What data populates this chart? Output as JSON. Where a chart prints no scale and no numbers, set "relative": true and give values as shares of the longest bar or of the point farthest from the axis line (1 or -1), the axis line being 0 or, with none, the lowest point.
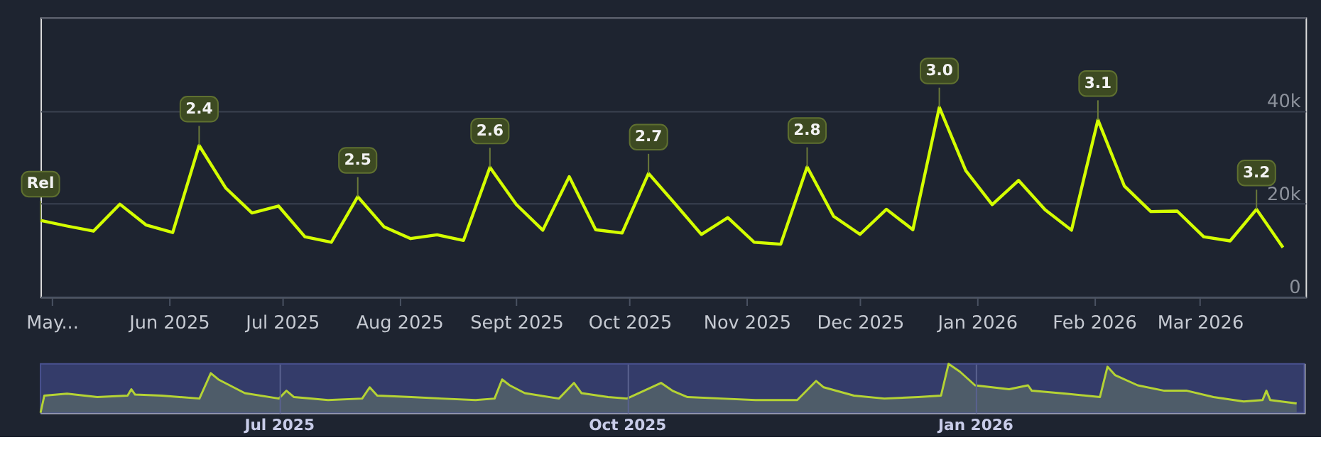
{
  "chart_data": [
    {
      "type": "line",
      "color": "#d4ff00",
      "x": [
        "2025-04-28",
        "2025-05-05",
        "2025-05-12",
        "2025-05-19",
        "2025-05-26",
        "2025-06-02",
        "2025-06-09",
        "2025-06-16",
        "2025-06-23",
        "2025-06-30",
        "2025-07-07",
        "2025-07-14",
        "2025-07-21",
        "2025-07-28",
        "2025-08-04",
        "2025-08-11",
        "2025-08-18",
        "2025-08-25",
        "2025-09-01",
        "2025-09-08",
        "2025-09-15",
        "2025-09-22",
        "2025-09-29",
        "2025-10-06",
        "2025-10-13",
        "2025-10-20",
        "2025-10-27",
        "2025-11-03",
        "2025-11-10",
        "2025-11-17",
        "2025-11-24",
        "2025-12-01",
        "2025-12-08",
        "2025-12-15",
        "2025-12-22",
        "2025-12-29",
        "2026-01-05",
        "2026-01-12",
        "2026-01-19",
        "2026-01-26",
        "2026-02-02",
        "2026-02-09",
        "2026-02-16",
        "2026-02-23",
        "2026-03-02",
        "2026-03-09",
        "2026-03-16",
        "2026-03-23"
      ],
      "values": [
        16400,
        15200,
        14100,
        19900,
        15400,
        13800,
        32500,
        23400,
        18000,
        19500,
        12900,
        11700,
        21500,
        15000,
        12500,
        13300,
        12100,
        27800,
        19800,
        14300,
        25800,
        14400,
        13700,
        26500,
        20000,
        13400,
        17000,
        11700,
        11300,
        27900,
        17300,
        13400,
        18800,
        14400,
        40700,
        27100,
        19800,
        25000,
        18700,
        14300,
        38000,
        23800,
        18300,
        18400,
        12900,
        12000,
        18800,
        10600
      ],
      "xlim": [
        "2025-04-28",
        "2026-03-29"
      ],
      "xticks": [
        {
          "value": "2025-05-01",
          "label": "May..."
        },
        {
          "value": "2025-06-01",
          "label": "Jun 2025"
        },
        {
          "value": "2025-07-01",
          "label": "Jul 2025"
        },
        {
          "value": "2025-08-01",
          "label": "Aug 2025"
        },
        {
          "value": "2025-09-01",
          "label": "Sept 2025"
        },
        {
          "value": "2025-10-01",
          "label": "Oct 2025"
        },
        {
          "value": "2025-11-01",
          "label": "Nov 2025"
        },
        {
          "value": "2025-12-01",
          "label": "Dec 2025"
        },
        {
          "value": "2026-01-01",
          "label": "Jan 2026"
        },
        {
          "value": "2026-02-01",
          "label": "Feb 2026"
        },
        {
          "value": "2026-03-01",
          "label": "Mar 2026"
        }
      ],
      "ylim": [
        0,
        60000
      ],
      "yticks": [
        {
          "value": 0,
          "label": "0"
        },
        {
          "value": 20000,
          "label": "20k"
        },
        {
          "value": 40000,
          "label": "40k"
        },
        {
          "value": 60000,
          "label": null
        }
      ],
      "grid": "y",
      "annotations": [
        {
          "text": "Rel",
          "x": "2025-04-28",
          "y": 16400
        },
        {
          "text": "2.4",
          "x": "2025-06-09",
          "y": 32500
        },
        {
          "text": "2.5",
          "x": "2025-07-21",
          "y": 21500
        },
        {
          "text": "2.6",
          "x": "2025-08-25",
          "y": 27800
        },
        {
          "text": "2.7",
          "x": "2025-10-06",
          "y": 26500
        },
        {
          "text": "2.8",
          "x": "2025-11-17",
          "y": 27900
        },
        {
          "text": "3.0",
          "x": "2025-12-22",
          "y": 40700
        },
        {
          "text": "3.1",
          "x": "2026-02-02",
          "y": 38000
        },
        {
          "text": "3.2",
          "x": "2026-03-16",
          "y": 18800
        }
      ]
    },
    {
      "type": "area",
      "color": "#b5d334",
      "relative": true,
      "x": [
        "2025-04-29",
        "2025-04-30",
        "2025-05-06",
        "2025-05-14",
        "2025-05-22",
        "2025-05-23",
        "2025-05-24",
        "2025-05-31",
        "2025-06-10",
        "2025-06-13",
        "2025-06-15",
        "2025-06-18",
        "2025-06-22",
        "2025-07-01",
        "2025-07-03",
        "2025-07-05",
        "2025-07-14",
        "2025-07-23",
        "2025-07-25",
        "2025-07-27",
        "2025-08-05",
        "2025-08-13",
        "2025-08-22",
        "2025-08-27",
        "2025-08-29",
        "2025-08-31",
        "2025-09-04",
        "2025-09-13",
        "2025-09-17",
        "2025-09-19",
        "2025-09-26",
        "2025-10-01",
        "2025-10-10",
        "2025-10-13",
        "2025-10-17",
        "2025-10-26",
        "2025-11-04",
        "2025-11-15",
        "2025-11-20",
        "2025-11-22",
        "2025-11-30",
        "2025-12-08",
        "2025-12-17",
        "2025-12-23",
        "2025-12-25",
        "2025-12-28",
        "2026-01-01",
        "2026-01-10",
        "2026-01-15",
        "2026-01-16",
        "2026-01-25",
        "2026-02-03",
        "2026-02-05",
        "2026-02-07",
        "2026-02-13",
        "2026-02-20",
        "2026-02-26",
        "2026-03-05",
        "2026-03-13",
        "2026-03-18",
        "2026-03-19",
        "2026-03-20",
        "2026-03-27"
      ],
      "values": [
        0,
        0.35,
        0.39,
        0.32,
        0.35,
        0.48,
        0.37,
        0.35,
        0.29,
        0.81,
        0.68,
        0.56,
        0.4,
        0.29,
        0.45,
        0.32,
        0.26,
        0.29,
        0.52,
        0.35,
        0.32,
        0.29,
        0.26,
        0.29,
        0.68,
        0.56,
        0.4,
        0.29,
        0.61,
        0.4,
        0.32,
        0.29,
        0.61,
        0.45,
        0.32,
        0.29,
        0.26,
        0.26,
        0.65,
        0.52,
        0.35,
        0.29,
        0.32,
        0.35,
        1,
        0.84,
        0.56,
        0.48,
        0.56,
        0.45,
        0.39,
        0.32,
        0.94,
        0.77,
        0.56,
        0.45,
        0.45,
        0.32,
        0.23,
        0.26,
        0.45,
        0.26,
        0.19
      ],
      "xlim": [
        "2025-04-29",
        "2026-03-29"
      ],
      "xticks": [
        {
          "value": "2025-07-01",
          "label": "Jul 2025"
        },
        {
          "value": "2025-10-01",
          "label": "Oct 2025"
        },
        {
          "value": "2026-01-01",
          "label": "Jan 2026"
        }
      ],
      "bands": [
        {
          "axis": "x",
          "from": "2025-04-29",
          "to": "2026-03-29",
          "color": "#343c6a"
        }
      ],
      "grid": "x"
    }
  ]
}
